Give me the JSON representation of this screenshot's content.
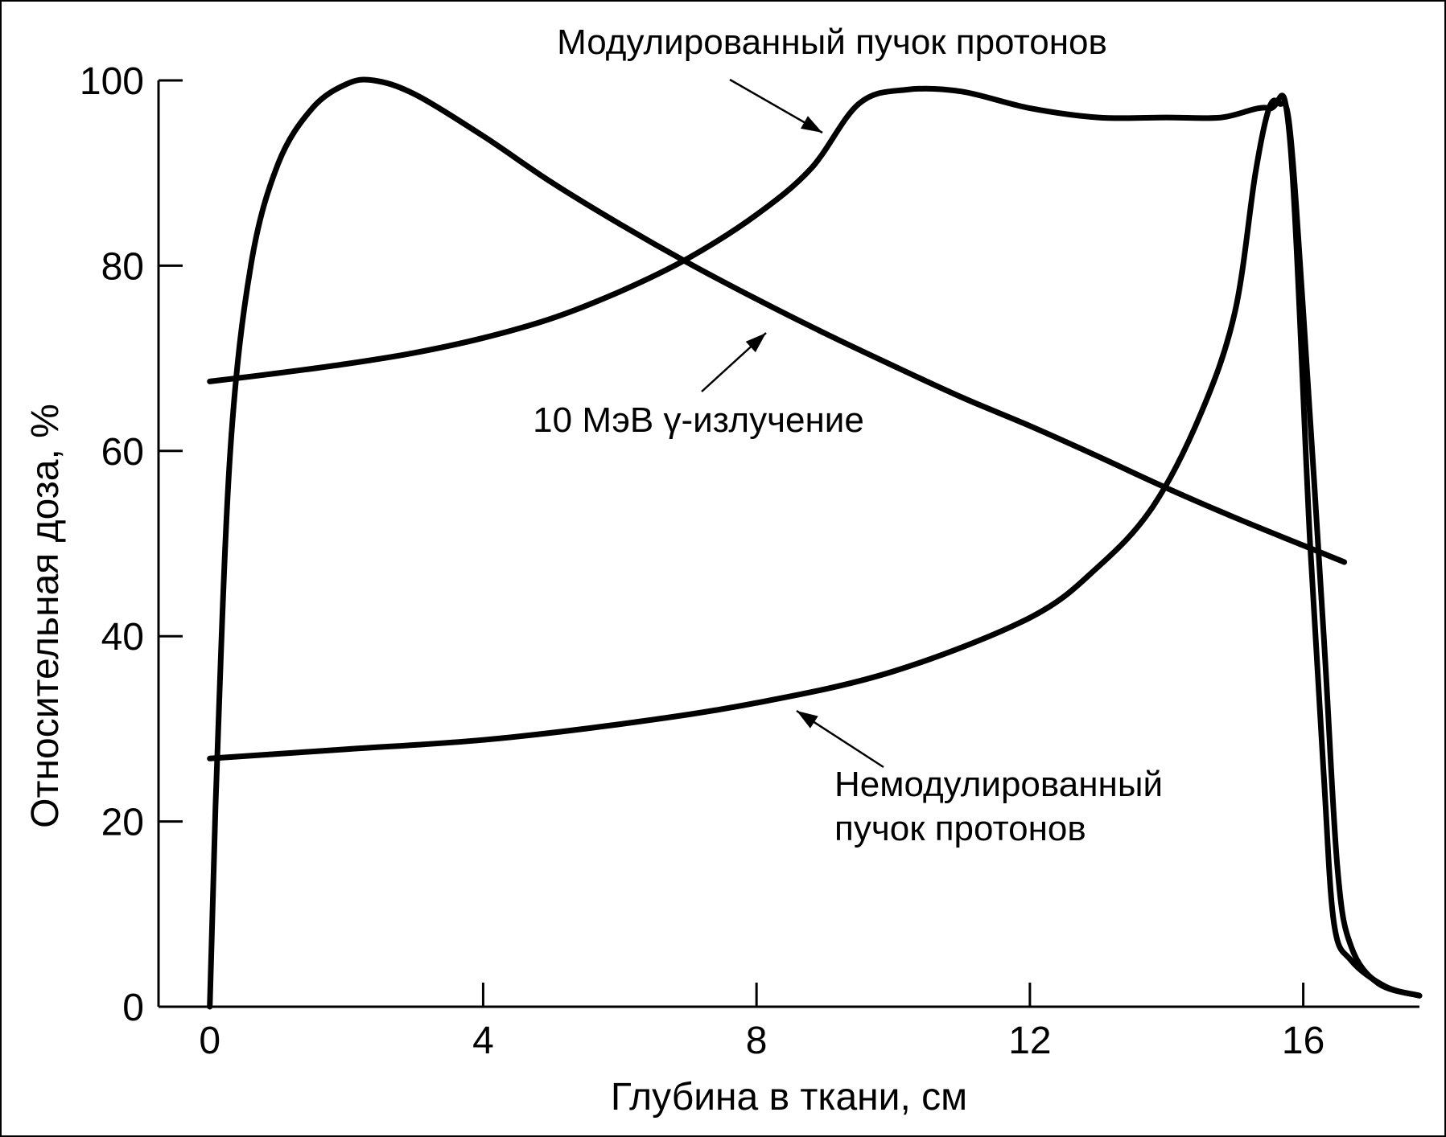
{
  "chart_data": {
    "type": "line",
    "title": "",
    "xlabel": "Глубина в ткани, см",
    "ylabel": "Относительная доза, %",
    "xlim": [
      -0.75,
      17.7
    ],
    "ylim": [
      0,
      100
    ],
    "x_ticks": [
      0,
      4,
      8,
      12,
      16
    ],
    "y_ticks": [
      0,
      20,
      40,
      60,
      80,
      100
    ],
    "x_tick_labels": [
      "0",
      "4",
      "8",
      "12",
      "16"
    ],
    "y_tick_labels": [
      "0",
      "20",
      "40",
      "60",
      "80",
      "100"
    ],
    "grid": false,
    "series": [
      {
        "key": "gamma",
        "points": [
          [
            0.0,
            67.5
          ],
          [
            1.0,
            68.4
          ],
          [
            2.0,
            69.4
          ],
          [
            3.0,
            70.6
          ],
          [
            4.0,
            72.2
          ],
          [
            5.0,
            74.3
          ],
          [
            6.0,
            77.2
          ],
          [
            7.0,
            80.8
          ],
          [
            8.0,
            85.5
          ],
          [
            8.8,
            90.5
          ],
          [
            9.5,
            97.5
          ],
          [
            10.2,
            99.0
          ],
          [
            11.0,
            98.8
          ],
          [
            12.0,
            97.0
          ],
          [
            13.0,
            96.0
          ],
          [
            14.0,
            96.0
          ],
          [
            14.8,
            96.0
          ],
          [
            15.5,
            97.0
          ],
          [
            15.8,
            94.0
          ],
          [
            16.1,
            50.0
          ],
          [
            16.3,
            25.0
          ],
          [
            16.45,
            9.0
          ],
          [
            16.7,
            5.0
          ],
          [
            17.2,
            2.2
          ],
          [
            17.7,
            1.2
          ]
        ]
      },
      {
        "key": "unmodulated",
        "points": [
          [
            0.0,
            0.0
          ],
          [
            0.1,
            25.0
          ],
          [
            0.3,
            60.0
          ],
          [
            0.6,
            80.0
          ],
          [
            1.0,
            91.0
          ],
          [
            1.5,
            97.0
          ],
          [
            2.0,
            99.6
          ],
          [
            2.4,
            100.0
          ],
          [
            3.0,
            98.5
          ],
          [
            4.0,
            94.0
          ],
          [
            5.0,
            89.0
          ],
          [
            6.0,
            84.5
          ],
          [
            7.0,
            80.3
          ],
          [
            8.0,
            76.4
          ],
          [
            9.0,
            72.7
          ],
          [
            10.0,
            69.2
          ],
          [
            11.0,
            65.8
          ],
          [
            12.0,
            62.7
          ],
          [
            13.0,
            59.4
          ],
          [
            14.0,
            56.0
          ],
          [
            15.0,
            52.8
          ],
          [
            16.0,
            49.8
          ],
          [
            16.6,
            48.0
          ]
        ]
      },
      {
        "key": "modulated",
        "points": [
          [
            0.0,
            26.8
          ],
          [
            2.0,
            27.8
          ],
          [
            4.0,
            28.8
          ],
          [
            6.0,
            30.5
          ],
          [
            8.0,
            32.8
          ],
          [
            10.0,
            36.2
          ],
          [
            12.0,
            42.0
          ],
          [
            13.0,
            47.5
          ],
          [
            13.8,
            54.0
          ],
          [
            14.5,
            64.0
          ],
          [
            15.0,
            75.0
          ],
          [
            15.3,
            90.0
          ],
          [
            15.5,
            97.0
          ],
          [
            15.65,
            97.5
          ],
          [
            15.8,
            95.0
          ],
          [
            16.0,
            75.0
          ],
          [
            16.3,
            40.0
          ],
          [
            16.5,
            15.0
          ],
          [
            16.7,
            6.5
          ],
          [
            17.1,
            2.5
          ],
          [
            17.7,
            1.2
          ]
        ]
      }
    ],
    "annotations": [
      {
        "key": "modulated",
        "text_lines": [
          "Модулированный пучок протонов"
        ]
      },
      {
        "key": "gamma",
        "text_lines": [
          "10 МэВ γ-излучение"
        ]
      },
      {
        "key": "unmodulated",
        "text_lines": [
          "Немодулированный",
          "пучок протонов"
        ]
      }
    ]
  }
}
